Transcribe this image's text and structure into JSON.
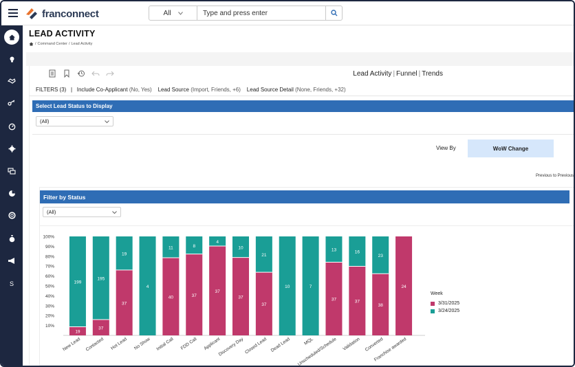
{
  "app": {
    "logo_text": "franconnect",
    "search_scope": "All",
    "search_placeholder": "Type and press enter"
  },
  "sidebar": {
    "items": [
      {
        "icon": "home-icon"
      },
      {
        "icon": "lightbulb-icon"
      },
      {
        "icon": "handshake-icon"
      },
      {
        "icon": "key-icon"
      },
      {
        "icon": "gauge-icon"
      },
      {
        "icon": "gear-icon"
      },
      {
        "icon": "chat-icon"
      },
      {
        "icon": "pie-icon"
      },
      {
        "icon": "lifebuoy-icon"
      },
      {
        "icon": "money-bag-icon"
      },
      {
        "icon": "megaphone-icon"
      },
      {
        "icon": "s-icon",
        "label": "S"
      }
    ]
  },
  "page": {
    "title": "LEAD ACTIVITY",
    "breadcrumb": [
      "Command Center",
      "Lead Activity"
    ],
    "views": [
      "Lead Activity",
      "Funnel",
      "Trends"
    ],
    "filters": {
      "label": "FILTERS (3)",
      "items": [
        {
          "name": "Include Co-Applicant",
          "value": "(No, Yes)"
        },
        {
          "name": "Lead Source",
          "value": "(Import, Friends, +6)"
        },
        {
          "name": "Lead Source Detail",
          "value": "(None, Friends, +32)"
        }
      ]
    },
    "status_section": {
      "title": "Select Lead Status to Display",
      "selected": "(All)"
    },
    "view_by": {
      "label": "View By",
      "button": "WoW Change"
    },
    "previous_note": "Previous to Previous",
    "filter_section": {
      "title": "Filter by Status",
      "selected": "(All)"
    }
  },
  "colors": {
    "crimson": "#c0396b",
    "teal": "#1a9e96",
    "blue": "#2f6db5",
    "navy": "#1d2740"
  },
  "chart_data": {
    "type": "bar",
    "stacked": true,
    "normalized": true,
    "categories": [
      "New Lead",
      "Contacted",
      "Hot Lead",
      "No Show",
      "Initial Call",
      "FDD Call",
      "Applicant",
      "Discovery Day",
      "Closed Lead",
      "Dead Lead",
      "MQL",
      "Unscheduled/Schedule",
      "Validation",
      "Converted",
      "Franchise awarded"
    ],
    "series": [
      {
        "name": "3/31/2025",
        "color": "#c0396b",
        "values": [
          19,
          37,
          37,
          0,
          40,
          37,
          37,
          37,
          37,
          0,
          0,
          37,
          37,
          38,
          24
        ]
      },
      {
        "name": "3/24/2025",
        "color": "#1a9e96",
        "values": [
          199,
          195,
          19,
          4,
          11,
          8,
          4,
          10,
          21,
          10,
          7,
          13,
          16,
          23,
          0
        ]
      }
    ],
    "yticks": [
      "10%",
      "20%",
      "30%",
      "40%",
      "50%",
      "60%",
      "70%",
      "80%",
      "90%",
      "100%"
    ],
    "ylim": [
      0,
      100
    ],
    "legend_title": "Week",
    "legend_position": "right"
  }
}
